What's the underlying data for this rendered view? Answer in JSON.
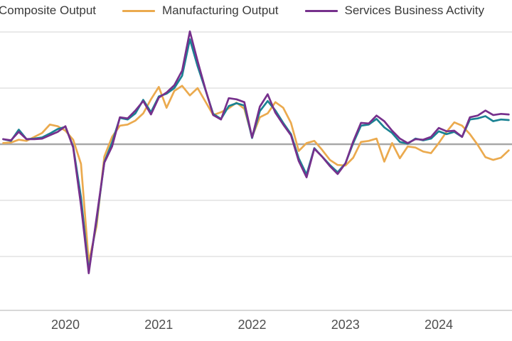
{
  "legend": {
    "items": [
      {
        "label": "Composite Output",
        "color": "#1a8293"
      },
      {
        "label": "Manufacturing Output",
        "color": "#ebaa4e"
      },
      {
        "label": "Services Business Activity",
        "color": "#76308c"
      }
    ]
  },
  "chart_data": {
    "type": "line",
    "title": "",
    "xlabel": "",
    "ylabel": "",
    "x_months": [
      "2019-05",
      "2019-06",
      "2019-07",
      "2019-08",
      "2019-09",
      "2019-10",
      "2019-11",
      "2019-12",
      "2020-01",
      "2020-02",
      "2020-03",
      "2020-04",
      "2020-05",
      "2020-06",
      "2020-07",
      "2020-08",
      "2020-09",
      "2020-10",
      "2020-11",
      "2020-12",
      "2021-01",
      "2021-02",
      "2021-03",
      "2021-04",
      "2021-05",
      "2021-06",
      "2021-07",
      "2021-08",
      "2021-09",
      "2021-10",
      "2021-11",
      "2021-12",
      "2022-01",
      "2022-02",
      "2022-03",
      "2022-04",
      "2022-05",
      "2022-06",
      "2022-07",
      "2022-08",
      "2022-09",
      "2022-10",
      "2022-11",
      "2022-12",
      "2023-01",
      "2023-02",
      "2023-03",
      "2023-04",
      "2023-05",
      "2023-06",
      "2023-07",
      "2023-08",
      "2023-09",
      "2023-10",
      "2023-11",
      "2023-12",
      "2024-01",
      "2024-02",
      "2024-03",
      "2024-04",
      "2024-05",
      "2024-06",
      "2024-07",
      "2024-08",
      "2024-09",
      "2024-10"
    ],
    "x_ticks": [
      {
        "label": "2020",
        "month_index": 8
      },
      {
        "label": "2021",
        "month_index": 20
      },
      {
        "label": "2022",
        "month_index": 32
      },
      {
        "label": "2023",
        "month_index": 44
      },
      {
        "label": "2024",
        "month_index": 56
      }
    ],
    "ylim": [
      20,
      75.7
    ],
    "y_gridlines_light": [
      70,
      60,
      40,
      30
    ],
    "y_baseline_dark": 50,
    "y_axis_line": 20.4,
    "grid_color_light": "#dcdcdc",
    "grid_color_dark": "#a8a8a8",
    "legend_position": "top",
    "series": [
      {
        "name": "Manufacturing Output",
        "color": "#ebaa4e",
        "values": [
          50.2,
          50.3,
          50.8,
          50.6,
          51.3,
          52.0,
          53.5,
          53.2,
          52.4,
          50.8,
          46.5,
          29.0,
          35.4,
          47.8,
          51.3,
          53.3,
          53.5,
          54.2,
          55.5,
          58.0,
          60.2,
          56.5,
          59.5,
          60.4,
          58.7,
          60.0,
          57.6,
          55.2,
          55.7,
          56.4,
          57.4,
          56.3,
          51.3,
          54.8,
          55.5,
          57.5,
          56.5,
          53.8,
          48.8,
          50.2,
          50.6,
          49.0,
          47.2,
          46.3,
          46.2,
          47.6,
          50.4,
          50.6,
          51.0,
          46.9,
          50.2,
          47.5,
          49.6,
          49.4,
          48.7,
          48.4,
          50.2,
          52.2,
          53.9,
          53.3,
          51.8,
          49.9,
          47.7,
          47.2,
          47.6,
          48.9
        ]
      },
      {
        "name": "Composite Output",
        "color": "#1a8293",
        "values": [
          50.9,
          50.6,
          52.6,
          50.9,
          51.0,
          51.2,
          51.9,
          52.7,
          53.1,
          49.6,
          40.5,
          27.4,
          36.4,
          46.8,
          50.3,
          54.7,
          54.4,
          55.5,
          57.9,
          55.7,
          58.5,
          59.0,
          60.0,
          62.2,
          68.7,
          63.9,
          59.7,
          55.4,
          54.5,
          56.8,
          57.3,
          56.9,
          51.1,
          55.9,
          57.7,
          56.0,
          53.8,
          51.8,
          47.5,
          44.6,
          49.3,
          47.8,
          46.3,
          45.0,
          46.6,
          50.2,
          53.3,
          53.5,
          54.5,
          53.0,
          52.0,
          50.4,
          50.1,
          51.0,
          50.7,
          51.0,
          52.3,
          51.8,
          52.2,
          51.3,
          54.4,
          54.6,
          55.0,
          54.1,
          54.4,
          54.3
        ]
      },
      {
        "name": "Services Business Activity",
        "color": "#76308c",
        "values": [
          50.9,
          50.7,
          52.2,
          50.9,
          50.9,
          51.0,
          51.6,
          52.2,
          53.2,
          49.4,
          39.1,
          27.0,
          36.9,
          46.7,
          49.6,
          54.8,
          54.6,
          56.0,
          57.7,
          55.3,
          58.3,
          59.2,
          60.5,
          63.1,
          70.1,
          64.8,
          59.8,
          55.2,
          54.4,
          58.2,
          58.0,
          57.5,
          51.2,
          56.7,
          58.9,
          55.6,
          53.5,
          51.6,
          47.0,
          44.1,
          49.2,
          47.8,
          46.1,
          44.7,
          46.6,
          50.5,
          53.8,
          53.7,
          55.1,
          54.1,
          52.4,
          51.0,
          50.2,
          50.9,
          50.8,
          51.3,
          52.9,
          52.3,
          52.4,
          51.3,
          54.8,
          55.1,
          56.0,
          55.2,
          55.4,
          55.3
        ]
      }
    ]
  }
}
